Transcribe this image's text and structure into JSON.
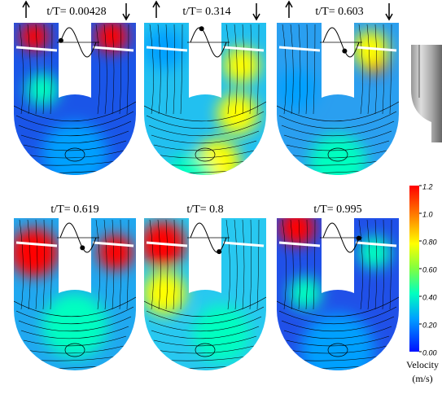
{
  "panels": [
    {
      "title": "t/T= 0.00428"
    },
    {
      "title": "t/T= 0.314"
    },
    {
      "title": "t/T= 0.603"
    },
    {
      "title": "t/T= 0.619"
    },
    {
      "title": "t/T= 0.8"
    },
    {
      "title": "t/T= 0.995"
    }
  ],
  "colorbar": {
    "label": "Velocity",
    "unit": "(m/s)",
    "lim": [
      0,
      1.2
    ],
    "ticks": [
      1.2,
      {
        "value": 1,
        "label": "1.0"
      },
      {
        "value": 0.8,
        "label": "0.80"
      },
      {
        "value": 0.6,
        "label": "0.60"
      },
      {
        "value": 0.4,
        "label": "0.40"
      },
      {
        "value": 0.2,
        "label": "0.20"
      },
      {
        "value": 0,
        "label": "0.00"
      }
    ]
  }
}
